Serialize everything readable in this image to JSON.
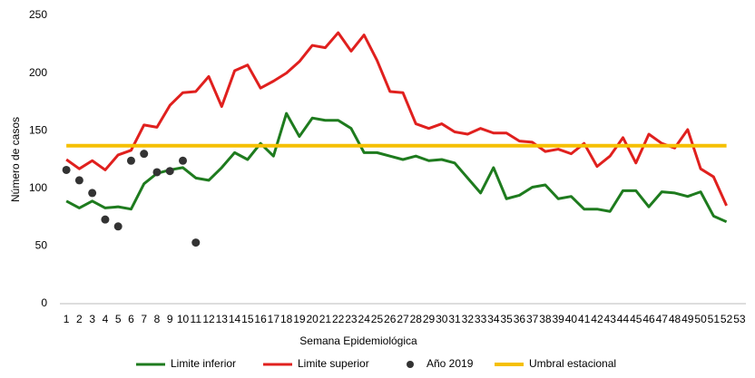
{
  "chart_data": {
    "type": "line",
    "y_label": "Número de casos",
    "x_label": "Semana Epidemiológica",
    "categories": [
      1,
      2,
      3,
      4,
      5,
      6,
      7,
      8,
      9,
      10,
      11,
      12,
      13,
      14,
      15,
      16,
      17,
      18,
      19,
      20,
      21,
      22,
      23,
      24,
      25,
      26,
      27,
      28,
      29,
      30,
      31,
      32,
      33,
      34,
      35,
      36,
      37,
      38,
      39,
      40,
      41,
      42,
      43,
      44,
      45,
      46,
      47,
      48,
      49,
      50,
      51,
      52,
      53
    ],
    "series": [
      {
        "name": "Limite inferior",
        "color": "#1e7b1e",
        "mark": "line",
        "values": [
          89,
          83,
          89,
          83,
          84,
          82,
          104,
          113,
          116,
          118,
          109,
          107,
          118,
          131,
          125,
          139,
          128,
          165,
          145,
          161,
          159,
          159,
          152,
          131,
          131,
          128,
          125,
          128,
          124,
          125,
          122,
          109,
          96,
          118,
          91,
          94,
          101,
          103,
          91,
          93,
          82,
          82,
          80,
          98,
          98,
          84,
          97,
          96,
          93,
          97,
          76,
          71,
          null
        ]
      },
      {
        "name": "Limite superior",
        "color": "#e0201e",
        "mark": "line",
        "values": [
          125,
          117,
          124,
          116,
          129,
          133,
          155,
          153,
          172,
          183,
          184,
          197,
          171,
          202,
          207,
          187,
          193,
          200,
          210,
          224,
          222,
          235,
          219,
          233,
          211,
          184,
          183,
          156,
          152,
          156,
          149,
          147,
          152,
          148,
          148,
          141,
          140,
          132,
          134,
          130,
          139,
          119,
          128,
          144,
          122,
          147,
          139,
          135,
          151,
          117,
          110,
          85,
          null
        ]
      },
      {
        "name": "Año 2019",
        "color": "#333333",
        "mark": "dot",
        "values": [
          116,
          107,
          96,
          73,
          67,
          124,
          130,
          114,
          115,
          124,
          53,
          null,
          null,
          null,
          null,
          null,
          null,
          null,
          null,
          null,
          null,
          null,
          null,
          null,
          null,
          null,
          null,
          null,
          null,
          null,
          null,
          null,
          null,
          null,
          null,
          null,
          null,
          null,
          null,
          null,
          null,
          null,
          null,
          null,
          null,
          null,
          null,
          null,
          null,
          null,
          null,
          null,
          null
        ]
      },
      {
        "name": "Umbral estacional",
        "color": "#f5c000",
        "mark": "thick-line",
        "values": [
          137,
          137,
          137,
          137,
          137,
          137,
          137,
          137,
          137,
          137,
          137,
          137,
          137,
          137,
          137,
          137,
          137,
          137,
          137,
          137,
          137,
          137,
          137,
          137,
          137,
          137,
          137,
          137,
          137,
          137,
          137,
          137,
          137,
          137,
          137,
          137,
          137,
          137,
          137,
          137,
          137,
          137,
          137,
          137,
          137,
          137,
          137,
          137,
          137,
          137,
          137,
          137,
          null
        ]
      }
    ],
    "ylim": [
      0,
      250
    ],
    "yticks": [
      0,
      50,
      100,
      150,
      200,
      250
    ],
    "grid": false,
    "legend": "bottom"
  }
}
